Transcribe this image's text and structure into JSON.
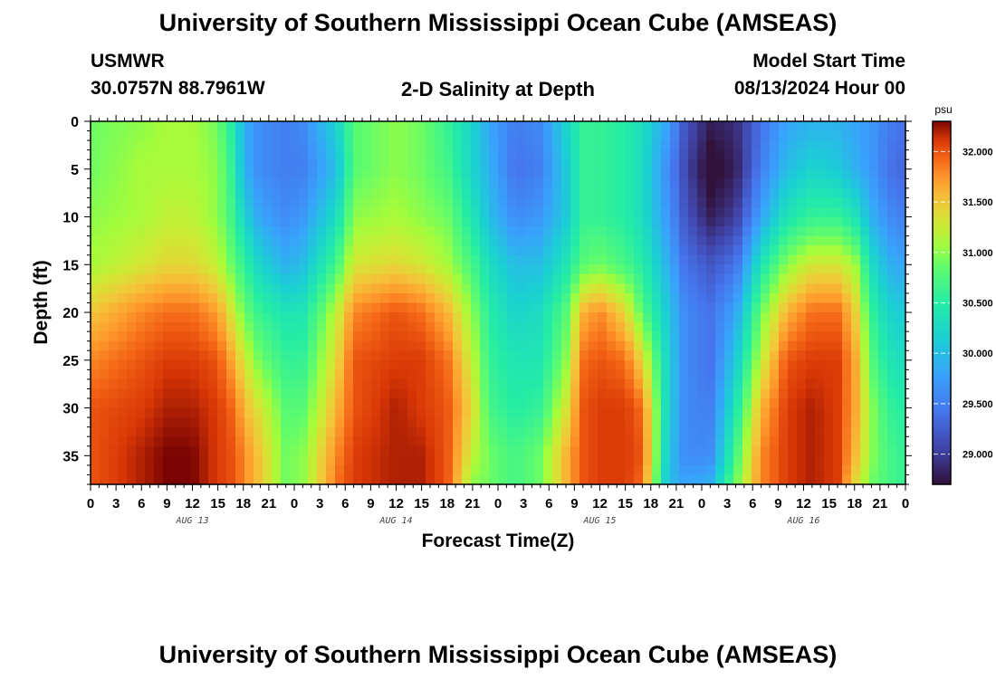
{
  "header": {
    "title": "University of Southern Mississippi Ocean Cube (AMSEAS)",
    "station_id": "USMWR",
    "station_coords": "30.0757N  88.7961W",
    "model_start_label": "Model Start Time",
    "model_start_value": "08/13/2024 Hour 00"
  },
  "footer": {
    "title": "University of Southern Mississippi Ocean Cube (AMSEAS)"
  },
  "chart_data": {
    "type": "heatmap",
    "title": "2-D Salinity at Depth",
    "xlabel": "Forecast Time(Z)",
    "ylabel": "Depth (ft)",
    "x_hour_range": [
      0,
      96
    ],
    "x_tick_labels": [
      "0",
      "3",
      "6",
      "9",
      "12",
      "15",
      "18",
      "21",
      "0",
      "3",
      "6",
      "9",
      "12",
      "15",
      "18",
      "21",
      "0",
      "3",
      "6",
      "9",
      "12",
      "15",
      "18",
      "21",
      "0",
      "3",
      "6",
      "9",
      "12",
      "15",
      "18",
      "21",
      "0"
    ],
    "x_day_labels": [
      "AUG 13",
      "AUG 14",
      "AUG 15",
      "AUG 16"
    ],
    "ylim": [
      0,
      38
    ],
    "y_ticks": [
      0,
      5,
      10,
      15,
      20,
      25,
      30,
      35
    ],
    "y_inverted": true,
    "colorbar": {
      "unit": "psu",
      "range": [
        28.7,
        32.3
      ],
      "ticks": [
        29.0,
        29.5,
        30.0,
        30.5,
        31.0,
        31.5,
        32.0
      ],
      "tick_labels": [
        "29.000",
        "29.500",
        "30.000",
        "30.500",
        "31.000",
        "31.500",
        "32.000"
      ]
    },
    "depth_rows": [
      0,
      5,
      10,
      15,
      20,
      25,
      30,
      35,
      38
    ],
    "salinity_columns": [
      {
        "hour": 0,
        "values": [
          30.9,
          30.9,
          31.0,
          31.1,
          31.5,
          31.8,
          32.0,
          32.0,
          32.0
        ]
      },
      {
        "hour": 6,
        "values": [
          31.0,
          31.1,
          31.1,
          31.3,
          31.8,
          32.0,
          32.1,
          32.2,
          32.2
        ]
      },
      {
        "hour": 9,
        "values": [
          31.1,
          31.1,
          31.2,
          31.4,
          31.9,
          32.1,
          32.2,
          32.3,
          32.3
        ]
      },
      {
        "hour": 12,
        "values": [
          31.1,
          31.1,
          31.2,
          31.4,
          31.9,
          32.1,
          32.2,
          32.3,
          32.3
        ]
      },
      {
        "hour": 15,
        "values": [
          30.9,
          31.0,
          31.0,
          31.2,
          31.7,
          32.0,
          32.1,
          32.1,
          32.1
        ]
      },
      {
        "hour": 17,
        "values": [
          30.4,
          30.5,
          30.6,
          30.8,
          31.2,
          31.6,
          31.9,
          32.0,
          32.0
        ]
      },
      {
        "hour": 18,
        "values": [
          29.9,
          29.9,
          30.2,
          30.6,
          30.9,
          31.3,
          31.6,
          31.8,
          31.8
        ]
      },
      {
        "hour": 20,
        "values": [
          29.6,
          29.6,
          29.8,
          30.2,
          30.6,
          30.9,
          31.3,
          31.5,
          31.5
        ]
      },
      {
        "hour": 23,
        "values": [
          29.5,
          29.5,
          29.6,
          29.9,
          30.4,
          30.6,
          30.8,
          30.9,
          30.9
        ]
      },
      {
        "hour": 25,
        "values": [
          29.6,
          29.5,
          29.7,
          30.0,
          30.4,
          30.6,
          30.8,
          31.0,
          31.0
        ]
      },
      {
        "hour": 29,
        "values": [
          30.2,
          30.0,
          30.3,
          30.7,
          31.2,
          31.4,
          31.6,
          31.8,
          31.9
        ]
      },
      {
        "hour": 31,
        "values": [
          30.8,
          30.8,
          31.0,
          31.3,
          31.8,
          32.0,
          32.0,
          32.1,
          32.1
        ]
      },
      {
        "hour": 36,
        "values": [
          31.0,
          31.0,
          31.1,
          31.4,
          32.0,
          32.1,
          32.2,
          32.2,
          32.2
        ]
      },
      {
        "hour": 39,
        "values": [
          30.9,
          30.9,
          31.0,
          31.3,
          31.9,
          32.1,
          32.1,
          32.2,
          32.2
        ]
      },
      {
        "hour": 42,
        "values": [
          30.6,
          30.7,
          30.9,
          31.1,
          31.6,
          31.9,
          32.0,
          32.0,
          32.0
        ]
      },
      {
        "hour": 45,
        "values": [
          30.2,
          30.2,
          30.4,
          30.7,
          31.0,
          31.2,
          31.4,
          31.2,
          31.0
        ]
      },
      {
        "hour": 47,
        "values": [
          29.8,
          29.9,
          30.0,
          30.3,
          30.5,
          30.6,
          30.7,
          30.9,
          30.9
        ]
      },
      {
        "hour": 50,
        "values": [
          29.5,
          29.4,
          29.6,
          30.0,
          30.2,
          30.4,
          30.5,
          30.7,
          30.7
        ]
      },
      {
        "hour": 53,
        "values": [
          29.6,
          29.5,
          29.7,
          30.0,
          30.3,
          30.4,
          30.6,
          30.9,
          30.9
        ]
      },
      {
        "hour": 56,
        "values": [
          30.2,
          30.1,
          30.1,
          30.4,
          30.8,
          31.0,
          31.3,
          31.6,
          31.6
        ]
      },
      {
        "hour": 58,
        "values": [
          30.6,
          30.6,
          30.6,
          30.8,
          31.6,
          31.9,
          32.0,
          32.0,
          32.0
        ]
      },
      {
        "hour": 60,
        "values": [
          30.6,
          30.6,
          30.6,
          30.9,
          31.8,
          32.0,
          32.1,
          32.1,
          32.1
        ]
      },
      {
        "hour": 63,
        "values": [
          30.5,
          30.5,
          30.5,
          30.7,
          31.4,
          31.9,
          32.1,
          32.1,
          32.1
        ]
      },
      {
        "hour": 65,
        "values": [
          30.3,
          30.3,
          30.3,
          30.5,
          30.8,
          31.4,
          31.9,
          32.0,
          31.9
        ]
      },
      {
        "hour": 68,
        "values": [
          29.8,
          29.6,
          29.7,
          29.9,
          30.1,
          30.2,
          30.2,
          30.1,
          30.0
        ]
      },
      {
        "hour": 70,
        "values": [
          29.2,
          29.1,
          29.2,
          29.4,
          29.6,
          29.6,
          29.6,
          29.6,
          29.8
        ]
      },
      {
        "hour": 73,
        "values": [
          28.8,
          28.6,
          28.8,
          29.2,
          29.4,
          29.4,
          29.5,
          29.6,
          29.9
        ]
      },
      {
        "hour": 76,
        "values": [
          28.9,
          28.8,
          29.0,
          29.4,
          29.8,
          30.1,
          30.4,
          30.7,
          30.9
        ]
      },
      {
        "hour": 79,
        "values": [
          29.4,
          29.5,
          29.8,
          30.4,
          30.9,
          31.2,
          31.6,
          31.8,
          31.8
        ]
      },
      {
        "hour": 82,
        "values": [
          29.8,
          30.0,
          30.4,
          31.0,
          31.6,
          32.0,
          32.1,
          32.1,
          32.1
        ]
      },
      {
        "hour": 85,
        "values": [
          29.9,
          30.2,
          30.6,
          31.3,
          31.9,
          32.1,
          32.2,
          32.2,
          32.2
        ]
      },
      {
        "hour": 88,
        "values": [
          29.9,
          30.1,
          30.6,
          31.3,
          31.9,
          32.1,
          32.1,
          32.1,
          32.1
        ]
      },
      {
        "hour": 90,
        "values": [
          29.8,
          29.9,
          30.4,
          31.1,
          31.5,
          31.7,
          31.7,
          31.6,
          31.4
        ]
      },
      {
        "hour": 92,
        "values": [
          29.7,
          29.7,
          29.9,
          30.3,
          30.6,
          30.8,
          31.0,
          31.0,
          30.9
        ]
      },
      {
        "hour": 94,
        "values": [
          29.5,
          29.4,
          29.6,
          29.9,
          30.2,
          30.4,
          30.6,
          30.7,
          30.7
        ]
      },
      {
        "hour": 96,
        "values": [
          29.4,
          29.3,
          29.5,
          29.8,
          30.1,
          30.3,
          30.5,
          30.6,
          30.6
        ]
      }
    ]
  }
}
